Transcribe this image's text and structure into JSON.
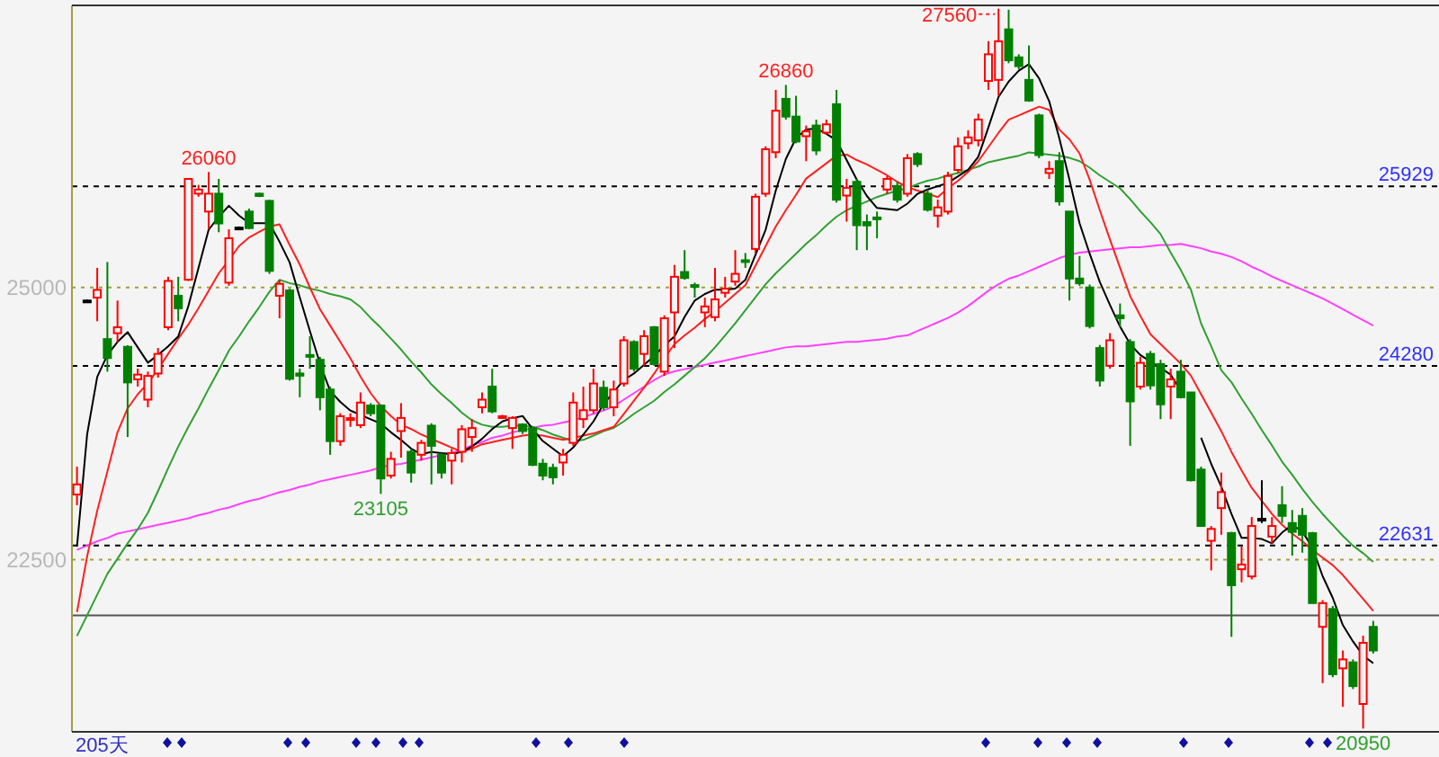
{
  "chart_data": {
    "type": "candlestick",
    "categories": [
      null,
      null,
      null,
      null,
      null,
      null,
      null,
      null,
      null,
      null,
      null,
      null,
      null,
      null,
      null,
      null,
      null,
      null,
      null,
      null,
      null,
      null,
      null,
      null,
      null,
      null,
      null,
      null,
      null,
      null,
      null,
      null,
      null,
      null,
      null,
      null,
      null,
      null,
      null,
      null,
      null,
      null,
      null,
      null,
      null,
      null,
      null,
      null,
      null,
      null,
      null,
      null,
      null,
      null,
      null,
      null,
      null,
      null,
      null,
      null,
      null,
      null,
      null,
      null,
      null,
      null,
      null,
      null,
      null,
      null,
      null,
      null,
      null,
      null,
      null,
      null,
      null,
      null,
      null,
      null,
      null,
      null,
      null,
      null,
      null,
      null,
      null,
      null,
      null,
      null,
      null,
      null,
      null,
      null,
      null,
      null,
      null,
      null,
      null,
      null,
      null,
      null,
      null,
      null,
      null,
      null,
      null,
      null,
      null,
      null,
      null,
      null,
      null,
      null,
      null,
      null,
      null,
      null,
      null,
      null,
      null,
      null,
      null,
      null,
      null,
      null,
      null,
      null,
      null
    ],
    "ohlc": [
      [
        23099,
        23355,
        23001,
        23192
      ],
      [
        24880,
        24890,
        24870,
        24880
      ],
      [
        24907,
        25180,
        24690,
        24978
      ],
      [
        24526,
        25234,
        24227,
        24352
      ],
      [
        24580,
        24880,
        24499,
        24635
      ],
      [
        24455,
        24470,
        23627,
        24128
      ],
      [
        24156,
        24254,
        24090,
        24200
      ],
      [
        23970,
        24227,
        23900,
        24188
      ],
      [
        24210,
        24444,
        24172,
        24390
      ],
      [
        24635,
        25098,
        24608,
        25060
      ],
      [
        24924,
        25098,
        24690,
        24809
      ],
      [
        25071,
        26000,
        25060,
        25997
      ],
      [
        25861,
        25942,
        25833,
        25899
      ],
      [
        25697,
        26060,
        25534,
        25861
      ],
      [
        25861,
        25997,
        25507,
        25588
      ],
      [
        25044,
        25534,
        25016,
        25452
      ],
      [
        25550,
        25560,
        25540,
        25550
      ],
      [
        25697,
        25724,
        25534,
        25545
      ],
      [
        25861,
        25870,
        25830,
        25840
      ],
      [
        25795,
        25806,
        25125,
        25152
      ],
      [
        24924,
        25071,
        24717,
        25033
      ],
      [
        24973,
        24989,
        24145,
        24161
      ],
      [
        24210,
        24254,
        23992,
        24190
      ],
      [
        24380,
        24553,
        24254,
        24370
      ],
      [
        24336,
        24363,
        23872,
        23992
      ],
      [
        24063,
        24090,
        23464,
        23589
      ],
      [
        23589,
        23845,
        23546,
        23818
      ],
      [
        23790,
        23845,
        23720,
        23800
      ],
      [
        23736,
        24036,
        23709,
        23943
      ],
      [
        23916,
        23938,
        23818,
        23845
      ],
      [
        23916,
        23927,
        23105,
        23246
      ],
      [
        23273,
        23491,
        23246,
        23426
      ],
      [
        23682,
        23938,
        23437,
        23802
      ],
      [
        23491,
        23518,
        23208,
        23300
      ],
      [
        23464,
        23600,
        23410,
        23573
      ],
      [
        23731,
        23753,
        23192,
        23546
      ],
      [
        23464,
        23480,
        23246,
        23300
      ],
      [
        23410,
        23518,
        23192,
        23480
      ],
      [
        23491,
        23736,
        23393,
        23698
      ],
      [
        23627,
        23791,
        23491,
        23709
      ],
      [
        23900,
        24036,
        23845,
        23970
      ],
      [
        24090,
        24254,
        23845,
        23862
      ],
      [
        23810,
        23830,
        23800,
        23818
      ],
      [
        23709,
        23818,
        23518,
        23802
      ],
      [
        23742,
        23753,
        23655,
        23682
      ],
      [
        23709,
        23720,
        23360,
        23371
      ],
      [
        23382,
        23426,
        23230,
        23273
      ],
      [
        23344,
        23382,
        23192,
        23257
      ],
      [
        23393,
        23518,
        23273,
        23464
      ],
      [
        23573,
        24036,
        23546,
        23943
      ],
      [
        23791,
        24090,
        23709,
        23873
      ],
      [
        23873,
        24254,
        23845,
        24118
      ],
      [
        24079,
        24145,
        23873,
        23900
      ],
      [
        23900,
        24145,
        23818,
        24063
      ],
      [
        24118,
        24553,
        24090,
        24515
      ],
      [
        24499,
        24515,
        24227,
        24254
      ],
      [
        24390,
        24608,
        24281,
        24553
      ],
      [
        24635,
        24646,
        24281,
        24297
      ],
      [
        24227,
        24744,
        24188,
        24717
      ],
      [
        24771,
        25207,
        24444,
        25098
      ],
      [
        25142,
        25343,
        25071,
        25087
      ],
      [
        25022,
        25044,
        24907,
        25011
      ],
      [
        24771,
        24907,
        24635,
        24826
      ],
      [
        24728,
        25180,
        24690,
        24891
      ],
      [
        24951,
        25098,
        24907,
        24989
      ],
      [
        25054,
        25343,
        25016,
        25125
      ],
      [
        25250,
        25316,
        25180,
        25240
      ],
      [
        25354,
        25861,
        25316,
        25833
      ],
      [
        25861,
        26296,
        25833,
        26269
      ],
      [
        26242,
        26814,
        26187,
        26623
      ],
      [
        26732,
        26860,
        26541,
        26569
      ],
      [
        26569,
        26760,
        26324,
        26340
      ],
      [
        26389,
        26487,
        26160,
        26433
      ],
      [
        26487,
        26541,
        26215,
        26258
      ],
      [
        26422,
        26541,
        26405,
        26498
      ],
      [
        26683,
        26814,
        25779,
        25806
      ],
      [
        25844,
        25997,
        25605,
        25915
      ],
      [
        25970,
        25997,
        25343,
        25572
      ],
      [
        25600,
        25670,
        25343,
        25570
      ],
      [
        25643,
        25697,
        25452,
        25630
      ],
      [
        25899,
        26024,
        25861,
        25997
      ],
      [
        25932,
        25970,
        25779,
        25806
      ],
      [
        25861,
        26225,
        25833,
        26187
      ],
      [
        26225,
        26242,
        26106,
        26133
      ],
      [
        25861,
        25899,
        25697,
        25714
      ],
      [
        25659,
        25806,
        25550,
        25735
      ],
      [
        25697,
        26062,
        25670,
        26024
      ],
      [
        26079,
        26378,
        26051,
        26296
      ],
      [
        26324,
        26444,
        26269,
        26378
      ],
      [
        26351,
        26596,
        26296,
        26542
      ],
      [
        26896,
        27261,
        26814,
        27141
      ],
      [
        26906,
        27560,
        26760,
        27261
      ],
      [
        27370,
        27550,
        27059,
        27086
      ],
      [
        27113,
        27141,
        27004,
        27032
      ],
      [
        26906,
        27222,
        26705,
        26716
      ],
      [
        26580,
        26596,
        26187,
        26215
      ],
      [
        26051,
        26160,
        25997,
        26089
      ],
      [
        26160,
        26242,
        25752,
        25790
      ],
      [
        25697,
        25697,
        24880,
        25082
      ],
      [
        25082,
        25289,
        25016,
        25038
      ],
      [
        25000,
        25027,
        24624,
        24646
      ],
      [
        24444,
        24472,
        24090,
        24145
      ],
      [
        24281,
        24581,
        24254,
        24515
      ],
      [
        24744,
        24853,
        24635,
        24717
      ],
      [
        24499,
        24526,
        23546,
        23954
      ],
      [
        24090,
        24363,
        24063,
        24308
      ],
      [
        24390,
        24417,
        24063,
        24101
      ],
      [
        24297,
        24336,
        23791,
        23927
      ],
      [
        24090,
        24254,
        23791,
        24156
      ],
      [
        24227,
        24336,
        23981,
        23992
      ],
      [
        24036,
        24036,
        23219,
        23230
      ],
      [
        23328,
        23355,
        22810,
        22810
      ],
      [
        22674,
        22810,
        22402,
        22783
      ],
      [
        22974,
        23300,
        22729,
        23121
      ],
      [
        22745,
        22756,
        21792,
        22266
      ],
      [
        22413,
        22620,
        22293,
        22456
      ],
      [
        22347,
        22892,
        22320,
        22810
      ],
      [
        22876,
        23230,
        22837,
        22876
      ],
      [
        22712,
        22892,
        22647,
        22810
      ],
      [
        23001,
        23175,
        22837,
        22903
      ],
      [
        22837,
        22957,
        22538,
        22756
      ],
      [
        22903,
        22974,
        22565,
        22729
      ],
      [
        22744,
        22756,
        22102,
        22102
      ],
      [
        21884,
        22129,
        21367,
        22102
      ],
      [
        22048,
        22075,
        21421,
        21449
      ],
      [
        21503,
        21667,
        21149,
        21585
      ],
      [
        21558,
        21585,
        21313,
        21340
      ],
      [
        21176,
        21803,
        20950,
        21737
      ],
      [
        21884,
        21939,
        21639,
        21667
      ]
    ],
    "series": [
      {
        "type": "line",
        "color": "#ff40ff",
        "values": [
          22590,
          22630,
          22670,
          22700,
          22740,
          22760,
          22780,
          22800,
          22820,
          22840,
          22860,
          22880,
          22910,
          22930,
          22960,
          22980,
          23010,
          23040,
          23060,
          23090,
          23120,
          23140,
          23170,
          23190,
          23220,
          23240,
          23260,
          23280,
          23300,
          23320,
          23350,
          23370,
          23380,
          23400,
          23420,
          23440,
          23460,
          23480,
          23510,
          23550,
          23580,
          23620,
          23640,
          23670,
          23690,
          23710,
          23730,
          23740,
          23760,
          23780,
          23810,
          23840,
          23870,
          23910,
          23970,
          24030,
          24090,
          24150,
          24200,
          24230,
          24250,
          24270,
          24290,
          24310,
          24330,
          24350,
          24370,
          24390,
          24410,
          24430,
          24450,
          24460,
          24460,
          24470,
          24480,
          24490,
          24500,
          24500,
          24510,
          24520,
          24530,
          24550,
          24560,
          24600,
          24640,
          24680,
          24720,
          24770,
          24830,
          24900,
          24970,
          25030,
          25080,
          25110,
          25150,
          25190,
          25230,
          25270,
          25300,
          25320,
          25330,
          25340,
          25350,
          25360,
          25370,
          25370,
          25380,
          25390,
          25390,
          25400,
          25380,
          25360,
          25330,
          25310,
          25280,
          25240,
          25190,
          25150,
          25100,
          25060,
          25020,
          24980,
          24940,
          24900,
          24850,
          24800,
          24750,
          24700,
          24650
        ]
      },
      {
        "type": "line",
        "color": "#30a030",
        "values": [
          21800,
          21990,
          22180,
          22370,
          22510,
          22650,
          22780,
          22930,
          23130,
          23340,
          23540,
          23720,
          23890,
          24070,
          24240,
          24420,
          24550,
          24690,
          24820,
          24960,
          25070,
          25040,
          25020,
          24990,
          24970,
          24940,
          24920,
          24890,
          24820,
          24720,
          24630,
          24530,
          24430,
          24320,
          24220,
          24110,
          24020,
          23940,
          23850,
          23780,
          23740,
          23720,
          23720,
          23730,
          23730,
          23720,
          23690,
          23650,
          23620,
          23590,
          23600,
          23640,
          23680,
          23710,
          23770,
          23840,
          23900,
          23960,
          24040,
          24110,
          24190,
          24270,
          24350,
          24450,
          24560,
          24670,
          24790,
          24910,
          25030,
          25130,
          25220,
          25310,
          25400,
          25480,
          25570,
          25650,
          25710,
          25750,
          25790,
          25830,
          25860,
          25890,
          25910,
          25950,
          25980,
          26000,
          26030,
          26050,
          26080,
          26110,
          26150,
          26170,
          26190,
          26210,
          26240,
          26230,
          26220,
          26210,
          26190,
          26160,
          26100,
          26030,
          25970,
          25910,
          25810,
          25700,
          25600,
          25490,
          25320,
          25160,
          24980,
          24670,
          24460,
          24240,
          24130,
          23980,
          23840,
          23690,
          23550,
          23400,
          23280,
          23150,
          23030,
          22920,
          22820,
          22720,
          22630,
          22560,
          22480
        ]
      },
      {
        "type": "line",
        "color": "#ff2020",
        "values": [
          22020,
          22530,
          22950,
          23310,
          23670,
          23890,
          24020,
          24120,
          24250,
          24390,
          24530,
          24660,
          24810,
          24970,
          25130,
          25250,
          25380,
          25460,
          25510,
          25560,
          25580,
          25390,
          25210,
          25000,
          24800,
          24650,
          24500,
          24350,
          24180,
          24030,
          23910,
          23820,
          23740,
          23700,
          23650,
          23610,
          23570,
          23530,
          23490,
          23520,
          23560,
          23580,
          23600,
          23620,
          23640,
          23650,
          23640,
          23620,
          23600,
          23620,
          23640,
          23660,
          23690,
          23720,
          23840,
          23960,
          24080,
          24210,
          24350,
          24480,
          24560,
          24630,
          24710,
          24780,
          24860,
          24940,
          25020,
          25200,
          25380,
          25560,
          25710,
          25850,
          26000,
          26070,
          26140,
          26210,
          26220,
          26170,
          26130,
          26080,
          26030,
          25970,
          25920,
          25890,
          25860,
          25830,
          25910,
          25980,
          26060,
          26160,
          26290,
          26420,
          26540,
          26580,
          26620,
          26660,
          26630,
          26450,
          26360,
          26230,
          25990,
          25710,
          25440,
          25180,
          24920,
          24740,
          24570,
          24480,
          24390,
          24300,
          24190,
          24020,
          23850,
          23680,
          23490,
          23320,
          23160,
          23040,
          22920,
          22820,
          22740,
          22670,
          22590,
          22520,
          22450,
          22360,
          22250,
          22140,
          22030
        ]
      },
      {
        "type": "line",
        "color": "#000000",
        "values": [
          22620,
          23650,
          24180,
          24380,
          24500,
          24590,
          24450,
          24310,
          24380,
          24460,
          24550,
          24830,
          25180,
          25530,
          25650,
          25750,
          25660,
          25590,
          25590,
          25590,
          25420,
          25230,
          24910,
          24600,
          24300,
          24050,
          23950,
          23870,
          23830,
          23790,
          23750,
          23670,
          23600,
          23520,
          23470,
          23490,
          23480,
          23470,
          23490,
          23540,
          23610,
          23700,
          23770,
          23800,
          23820,
          23700,
          23590,
          23520,
          23450,
          23530,
          23650,
          23770,
          23930,
          24040,
          24150,
          24210,
          24290,
          24370,
          24470,
          24550,
          24730,
          24880,
          24940,
          24980,
          24980,
          24990,
          25070,
          25300,
          25530,
          25890,
          26180,
          26370,
          26450,
          26460,
          26410,
          26350,
          26170,
          25990,
          25840,
          25730,
          25720,
          25710,
          25770,
          25860,
          25900,
          25930,
          25960,
          26020,
          26080,
          26200,
          26470,
          26750,
          26890,
          26990,
          27050,
          26920,
          26710,
          26370,
          25990,
          25590,
          25310,
          25050,
          24840,
          24640,
          24480,
          24380,
          24320,
          24260,
          24200,
          24050,
          null,
          23620,
          23380,
          23170,
          22920,
          22700,
          22700,
          22690,
          22650,
          22750,
          22820,
          22760,
          22610,
          22350,
          22150,
          21900,
          21750,
          21620,
          21550
        ]
      }
    ],
    "ylim": [
      20920,
      27590
    ],
    "yticks": [
      25000,
      22500
    ],
    "grid": "y",
    "ref_lines": [
      {
        "axis": "y",
        "value": 25929,
        "label": "25929",
        "line_style": "dashed",
        "color": "#000000"
      },
      {
        "axis": "y",
        "value": 24280,
        "label": "24280",
        "line_style": "dashed",
        "color": "#000000"
      },
      {
        "axis": "y",
        "value": 22631,
        "label": "22631",
        "line_style": "dashed",
        "color": "#000000"
      },
      {
        "axis": "y",
        "value": 21990,
        "label": null,
        "line_style": "solid",
        "color": "#555555"
      }
    ],
    "annotations": [
      {
        "text": "26060",
        "y": 26060
      },
      {
        "text": "23105",
        "y": 23105
      },
      {
        "text": "26860",
        "y": 26860
      },
      "27560",
      {
        "text": "20950",
        "y": 20950
      },
      "205天"
    ]
  }
}
